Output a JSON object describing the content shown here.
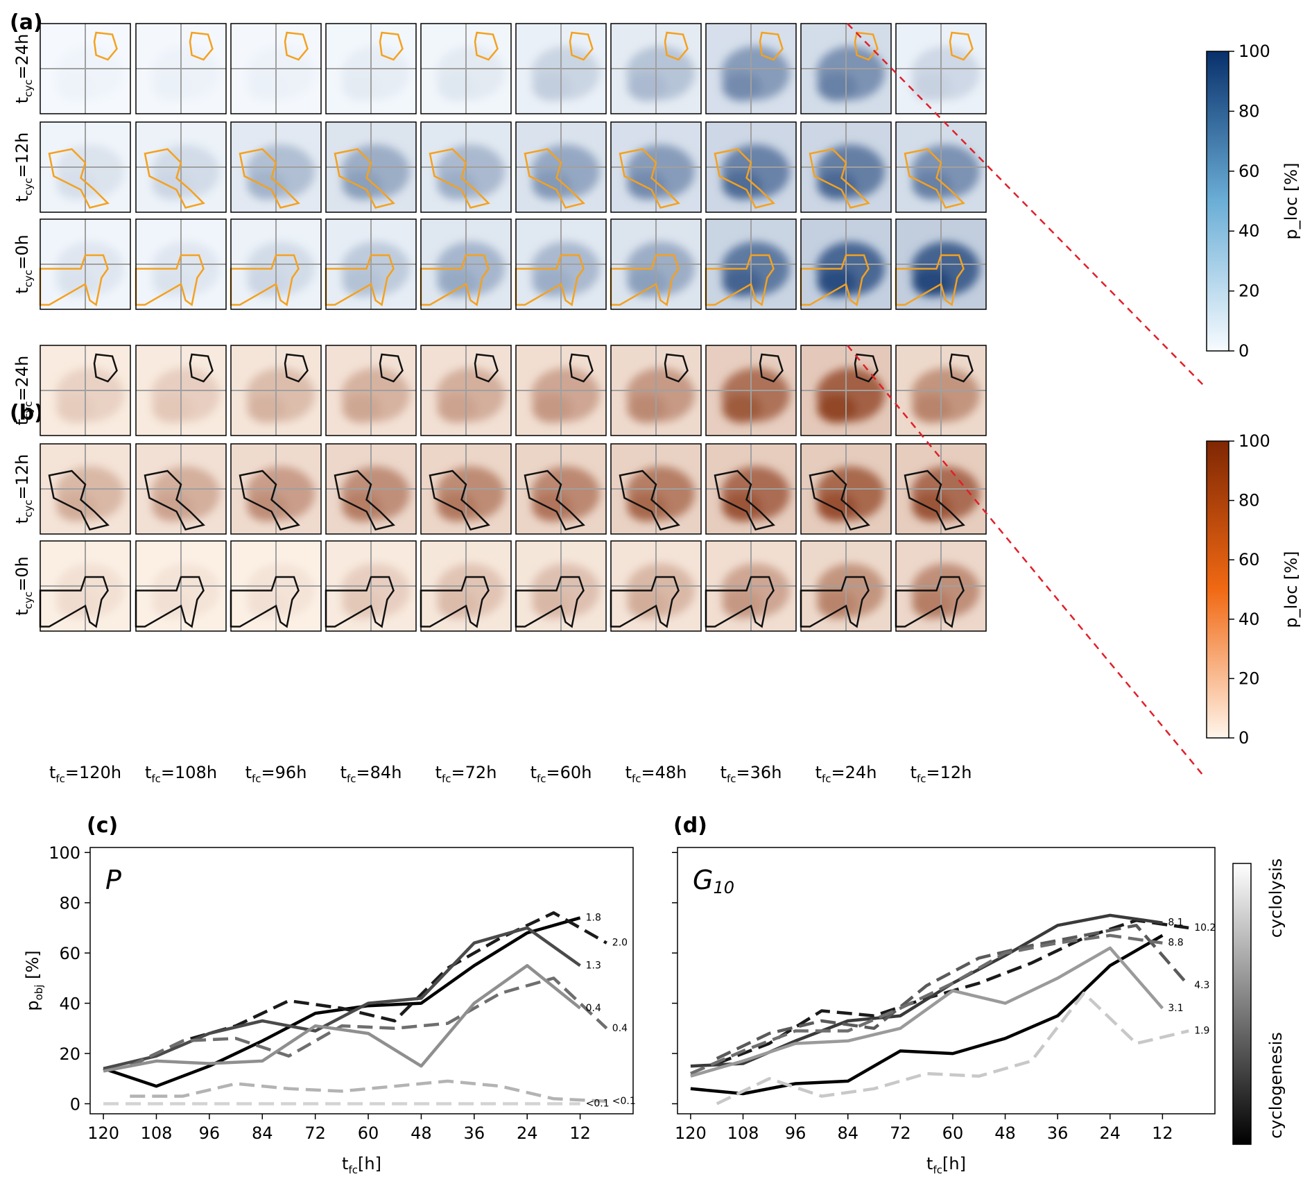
{
  "figure": {
    "panel_a": {
      "label": "(a)",
      "row_labels": [
        "t_cyc=24h",
        "t_cyc=12h",
        "t_cyc=0h"
      ],
      "column_labels": [
        "t_fc=120h",
        "t_fc=108h",
        "t_fc=96h",
        "t_fc=84h",
        "t_fc=72h",
        "t_fc=60h",
        "t_fc=48h",
        "t_fc=36h",
        "t_fc=24h",
        "t_fc=12h"
      ],
      "colorbar": {
        "ticks": [
          "0",
          "20",
          "40",
          "60",
          "80",
          "100"
        ],
        "label": "p_loc [%]",
        "low_color": "#f7fbff",
        "high_color": "#08306b"
      },
      "contour_color": "#f4a11f",
      "mean_intensity_percent": [
        [
          4,
          5,
          5,
          8,
          10,
          22,
          32,
          55,
          60,
          20
        ],
        [
          14,
          18,
          35,
          45,
          38,
          48,
          55,
          70,
          72,
          60
        ],
        [
          12,
          12,
          18,
          28,
          40,
          38,
          45,
          75,
          85,
          88
        ]
      ]
    },
    "panel_b": {
      "label": "(b)",
      "row_labels": [
        "t_cyc=24h",
        "t_cyc=12h",
        "t_cyc=0h"
      ],
      "column_labels": [
        "t_fc=120h",
        "t_fc=108h",
        "t_fc=96h",
        "t_fc=84h",
        "t_fc=72h",
        "t_fc=60h",
        "t_fc=48h",
        "t_fc=36h",
        "t_fc=24h",
        "t_fc=12h"
      ],
      "colorbar": {
        "ticks": [
          "0",
          "20",
          "40",
          "60",
          "80",
          "100"
        ],
        "label": "p_loc [%]",
        "low_color": "#fff5eb",
        "high_color": "#7f2704"
      },
      "contour_color": "#111111",
      "mean_intensity_percent": [
        [
          20,
          22,
          32,
          38,
          40,
          45,
          52,
          75,
          85,
          55
        ],
        [
          35,
          40,
          50,
          58,
          60,
          62,
          68,
          78,
          80,
          78
        ],
        [
          12,
          10,
          10,
          22,
          28,
          30,
          35,
          45,
          55,
          58
        ]
      ]
    },
    "chart_data": [
      {
        "type": "line",
        "panel": "(c)",
        "title": "P",
        "xlabel": "t_fc[h]",
        "ylabel": "p_obj [%]",
        "x_reversed": true,
        "xlim": [
          123,
          0
        ],
        "ylim": [
          -4,
          102
        ],
        "xticks": [
          120,
          108,
          96,
          84,
          72,
          60,
          48,
          36,
          24,
          12
        ],
        "yticks": [
          0,
          20,
          40,
          60,
          80,
          100
        ],
        "series": [
          {
            "shade": "#000000",
            "dash": false,
            "end_label": "1.8",
            "points": [
              [
                120,
                14
              ],
              [
                108,
                7
              ],
              [
                96,
                15
              ],
              [
                84,
                25
              ],
              [
                72,
                36
              ],
              [
                60,
                39
              ],
              [
                48,
                40
              ],
              [
                36,
                55
              ],
              [
                24,
                68
              ],
              [
                12,
                74
              ]
            ]
          },
          {
            "shade": "#1a1a1a",
            "dash": true,
            "end_label": "2.0",
            "points": [
              [
                114,
                15
              ],
              [
                102,
                25
              ],
              [
                90,
                31
              ],
              [
                78,
                41
              ],
              [
                66,
                38
              ],
              [
                54,
                33
              ],
              [
                42,
                54
              ],
              [
                30,
                66
              ],
              [
                18,
                76
              ],
              [
                6,
                64
              ]
            ]
          },
          {
            "shade": "#4a4a4a",
            "dash": false,
            "end_label": "1.3",
            "points": [
              [
                120,
                14
              ],
              [
                108,
                19
              ],
              [
                96,
                28
              ],
              [
                84,
                33
              ],
              [
                72,
                29
              ],
              [
                60,
                40
              ],
              [
                48,
                42
              ],
              [
                36,
                64
              ],
              [
                24,
                70
              ],
              [
                12,
                55
              ]
            ]
          },
          {
            "shade": "#6e6e6e",
            "dash": true,
            "end_label": "0.4",
            "points": [
              [
                114,
                15
              ],
              [
                102,
                25
              ],
              [
                90,
                26
              ],
              [
                78,
                19
              ],
              [
                66,
                31
              ],
              [
                54,
                30
              ],
              [
                42,
                32
              ],
              [
                30,
                44
              ],
              [
                18,
                50
              ],
              [
                6,
                30
              ]
            ]
          },
          {
            "shade": "#8f8f8f",
            "dash": false,
            "end_label": "0.4",
            "points": [
              [
                120,
                13
              ],
              [
                108,
                17
              ],
              [
                96,
                16
              ],
              [
                84,
                17
              ],
              [
                72,
                31
              ],
              [
                60,
                28
              ],
              [
                48,
                15
              ],
              [
                36,
                40
              ],
              [
                24,
                55
              ],
              [
                12,
                38
              ]
            ]
          },
          {
            "shade": "#b3b3b3",
            "dash": true,
            "end_label": "<0.1",
            "points": [
              [
                114,
                3
              ],
              [
                102,
                3
              ],
              [
                90,
                8
              ],
              [
                78,
                6
              ],
              [
                66,
                5
              ],
              [
                54,
                7
              ],
              [
                42,
                9
              ],
              [
                30,
                7
              ],
              [
                18,
                2
              ],
              [
                6,
                1
              ]
            ]
          },
          {
            "shade": "#d3d3d3",
            "dash": true,
            "end_label": "<0.1",
            "points": [
              [
                120,
                0
              ],
              [
                108,
                0
              ],
              [
                96,
                0
              ],
              [
                84,
                0
              ],
              [
                72,
                0
              ],
              [
                60,
                0
              ],
              [
                48,
                0
              ],
              [
                36,
                0
              ],
              [
                24,
                0
              ],
              [
                12,
                0
              ]
            ]
          }
        ]
      },
      {
        "type": "line",
        "panel": "(d)",
        "title": "G10",
        "xlabel": "t_fc[h]",
        "ylabel": "",
        "x_reversed": true,
        "xlim": [
          123,
          0
        ],
        "ylim": [
          -4,
          102
        ],
        "xticks": [
          120,
          108,
          96,
          84,
          72,
          60,
          48,
          36,
          24,
          12
        ],
        "yticks": [
          0,
          20,
          40,
          60,
          80,
          100
        ],
        "series": [
          {
            "shade": "#000000",
            "dash": false,
            "end_label": "",
            "points": [
              [
                120,
                6
              ],
              [
                108,
                4
              ],
              [
                96,
                8
              ],
              [
                84,
                9
              ],
              [
                72,
                21
              ],
              [
                60,
                20
              ],
              [
                48,
                26
              ],
              [
                36,
                35
              ],
              [
                24,
                55
              ],
              [
                12,
                67
              ]
            ]
          },
          {
            "shade": "#1a1a1a",
            "dash": true,
            "end_label": "10.2",
            "points": [
              [
                114,
                16
              ],
              [
                102,
                24
              ],
              [
                90,
                37
              ],
              [
                78,
                35
              ],
              [
                66,
                42
              ],
              [
                54,
                48
              ],
              [
                42,
                56
              ],
              [
                30,
                66
              ],
              [
                18,
                73
              ],
              [
                6,
                70
              ]
            ]
          },
          {
            "shade": "#3a3a3a",
            "dash": false,
            "end_label": "8.1",
            "points": [
              [
                120,
                15
              ],
              [
                108,
                16
              ],
              [
                96,
                25
              ],
              [
                84,
                33
              ],
              [
                72,
                35
              ],
              [
                60,
                48
              ],
              [
                48,
                59
              ],
              [
                36,
                71
              ],
              [
                24,
                75
              ],
              [
                12,
                72
              ]
            ]
          },
          {
            "shade": "#5a5a5a",
            "dash": true,
            "end_label": "4.3",
            "points": [
              [
                114,
                18
              ],
              [
                102,
                28
              ],
              [
                90,
                33
              ],
              [
                78,
                30
              ],
              [
                66,
                47
              ],
              [
                54,
                58
              ],
              [
                42,
                63
              ],
              [
                30,
                67
              ],
              [
                18,
                71
              ],
              [
                6,
                47
              ]
            ]
          },
          {
            "shade": "#6e6e6e",
            "dash": true,
            "end_label": "8.8",
            "points": [
              [
                120,
                12
              ],
              [
                108,
                21
              ],
              [
                96,
                29
              ],
              [
                84,
                29
              ],
              [
                72,
                38
              ],
              [
                60,
                48
              ],
              [
                48,
                60
              ],
              [
                36,
                64
              ],
              [
                24,
                67
              ],
              [
                12,
                64
              ]
            ]
          },
          {
            "shade": "#9a9a9a",
            "dash": false,
            "end_label": "3.1",
            "points": [
              [
                120,
                11
              ],
              [
                108,
                17
              ],
              [
                96,
                24
              ],
              [
                84,
                25
              ],
              [
                72,
                30
              ],
              [
                60,
                45
              ],
              [
                48,
                40
              ],
              [
                36,
                50
              ],
              [
                24,
                62
              ],
              [
                12,
                38
              ]
            ]
          },
          {
            "shade": "#c8c8c8",
            "dash": true,
            "end_label": "1.9",
            "points": [
              [
                114,
                0
              ],
              [
                102,
                10
              ],
              [
                90,
                3
              ],
              [
                78,
                6
              ],
              [
                66,
                12
              ],
              [
                54,
                11
              ],
              [
                42,
                17
              ],
              [
                30,
                44
              ],
              [
                18,
                24
              ],
              [
                6,
                29
              ]
            ]
          }
        ],
        "colorbar": {
          "top_label": "cyclolysis",
          "bottom_label": "cyclogenesis"
        }
      }
    ]
  }
}
